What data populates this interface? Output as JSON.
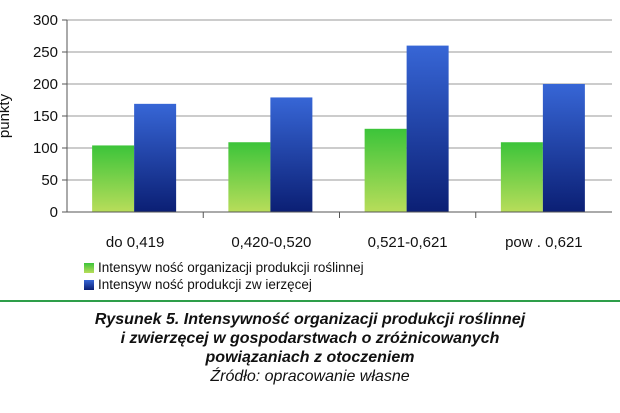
{
  "chart_data": {
    "type": "bar",
    "categories": [
      "do 0,419",
      "0,420-0,520",
      "0,521-0,621",
      "pow . 0,621"
    ],
    "series": [
      {
        "name": "Intensyw ność organizacji produkcji roślinnej",
        "values": [
          104,
          109,
          130,
          109
        ],
        "color": "#2aa836"
      },
      {
        "name": "Intensyw ność produkcji zw ierzęcej",
        "values": [
          169,
          179,
          260,
          200
        ],
        "color": "#1b3fa8"
      }
    ],
    "ylabel": "punkty",
    "ylim": [
      0,
      300
    ],
    "yticks": [
      "0",
      "50",
      "100",
      "150",
      "200",
      "250",
      "300"
    ],
    "grid": true,
    "legend": "bottom-left"
  },
  "caption": {
    "title_lines": [
      "Rysunek 5. Intensywność organizacji produkcji roślinnej",
      "i zwierzęcej w gospodarstwach o zróżnicowanych",
      "powiązaniach z otoczeniem"
    ],
    "source": "Źródło: opracowanie własne"
  }
}
